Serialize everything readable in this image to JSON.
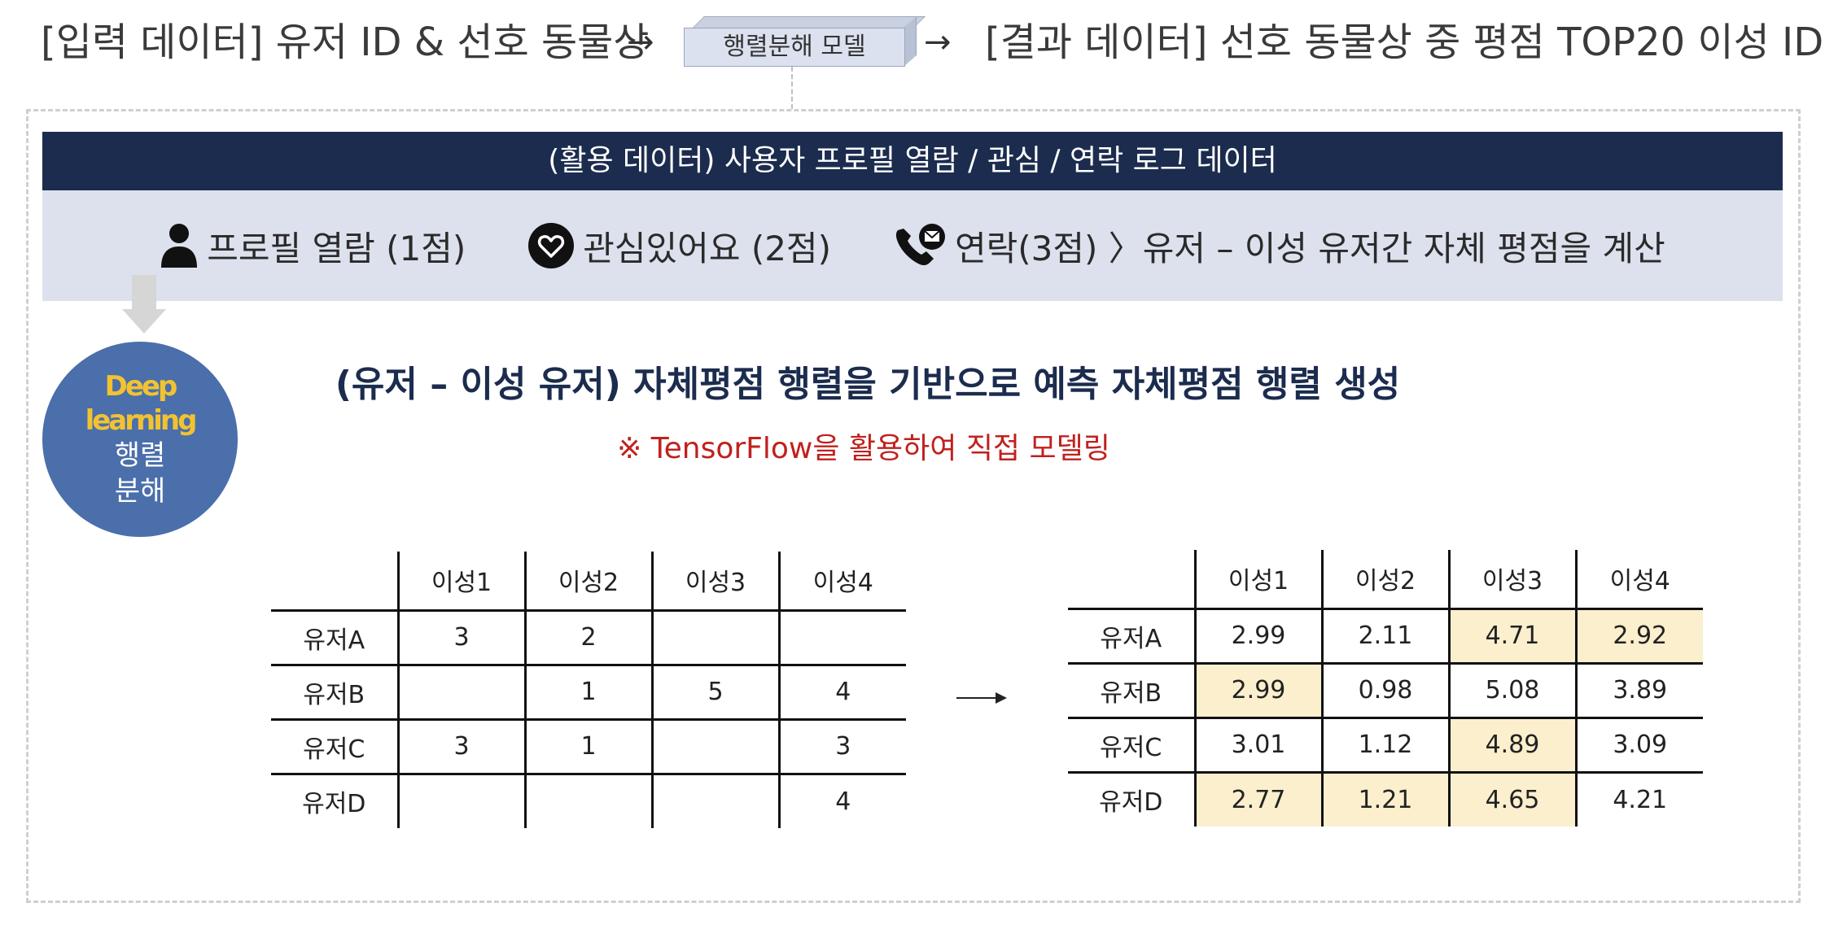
{
  "top": {
    "input_label": "[입력 데이터] 유저 ID & 선호 동물상",
    "arrow_glyph": "→",
    "model_label": "행렬분해 모델",
    "output_label": "[결과 데이터] 선호 동물상 중 평점 TOP20 이성 ID"
  },
  "banner": {
    "title": "(활용 데이터) 사용자 프로필 열람 / 관심 / 연락 로그 데이터"
  },
  "band": {
    "profile_view": "프로필 열람 (1점)",
    "interest": "관심있어요 (2점)",
    "contact": "연락(3점) 〉유저 – 이성 유저간 자체 평점을 계산",
    "icons": [
      "person-icon",
      "heart-icon",
      "phone-mail-icon"
    ]
  },
  "circle": {
    "line1": "Deep",
    "line2": "learning",
    "line3": "행렬",
    "line4": "분해"
  },
  "heading": "(유저 – 이성 유저) 자체평점 행렬을 기반으로 예측 자체평점 행렬 생성",
  "note": "※ TensorFlow을 활용하여 직접 모델링",
  "input_matrix": {
    "columns": [
      "이성1",
      "이성2",
      "이성3",
      "이성4"
    ],
    "rows": [
      {
        "label": "유저A",
        "cells": [
          "3",
          "2",
          "",
          ""
        ]
      },
      {
        "label": "유저B",
        "cells": [
          "",
          "1",
          "5",
          "4"
        ]
      },
      {
        "label": "유저C",
        "cells": [
          "3",
          "1",
          "",
          "3"
        ]
      },
      {
        "label": "유저D",
        "cells": [
          "",
          "",
          "",
          "4"
        ]
      }
    ]
  },
  "output_matrix": {
    "columns": [
      "이성1",
      "이성2",
      "이성3",
      "이성4"
    ],
    "rows": [
      {
        "label": "유저A",
        "cells": [
          "2.99",
          "2.11",
          "4.71",
          "2.92"
        ]
      },
      {
        "label": "유저B",
        "cells": [
          "2.99",
          "0.98",
          "5.08",
          "3.89"
        ]
      },
      {
        "label": "유저C",
        "cells": [
          "3.01",
          "1.12",
          "4.89",
          "3.09"
        ]
      },
      {
        "label": "유저D",
        "cells": [
          "2.77",
          "1.21",
          "4.65",
          "4.21"
        ]
      }
    ]
  },
  "colors": {
    "navy": "#1c2c4e",
    "band": "#dce1ed",
    "circle": "#4a6fab",
    "gold": "#f2c230",
    "highlight": "#fbefcd",
    "red": "#c0211e"
  }
}
